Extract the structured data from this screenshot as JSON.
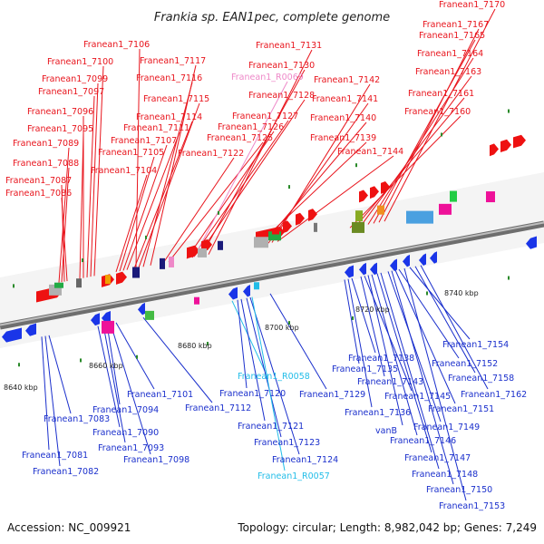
{
  "title": "Frankia sp. EAN1pec, complete genome",
  "footer": {
    "accession": "Accession: NC_009921",
    "summary": "Topology: circular; Length: 8,982,042 bp; Genes: 7,249"
  },
  "ticks": [
    "8640 kbp",
    "8660 kbp",
    "8680 kbp",
    "8700 kbp",
    "8720 kbp",
    "8740 kbp"
  ],
  "colors": {
    "forward_label": "#e8141c",
    "reverse_label": "#1a2fcc",
    "rna_forward_label": "#ee88c8",
    "rna_reverse_label": "#22bde8",
    "backbone": "#8a8a8a"
  },
  "top_labels": [
    {
      "text": "Franean1_7086",
      "kind": "forward"
    },
    {
      "text": "Franean1_7087",
      "kind": "forward"
    },
    {
      "text": "Franean1_7088",
      "kind": "forward"
    },
    {
      "text": "Franean1_7089",
      "kind": "forward"
    },
    {
      "text": "Franean1_7095",
      "kind": "forward"
    },
    {
      "text": "Franean1_7096",
      "kind": "forward"
    },
    {
      "text": "Franean1_7097",
      "kind": "forward"
    },
    {
      "text": "Franean1_7099",
      "kind": "forward"
    },
    {
      "text": "Franean1_7100",
      "kind": "forward"
    },
    {
      "text": "Franean1_7106",
      "kind": "forward"
    },
    {
      "text": "Franean1_7104",
      "kind": "forward"
    },
    {
      "text": "Franean1_7105",
      "kind": "forward"
    },
    {
      "text": "Franean1_7107",
      "kind": "forward"
    },
    {
      "text": "Franean1_7111",
      "kind": "forward"
    },
    {
      "text": "Franean1_7114",
      "kind": "forward"
    },
    {
      "text": "Franean1_7115",
      "kind": "forward"
    },
    {
      "text": "Franean1_7116",
      "kind": "forward"
    },
    {
      "text": "Franean1_7117",
      "kind": "forward"
    },
    {
      "text": "Franean1_7122",
      "kind": "forward"
    },
    {
      "text": "Franean1_7125",
      "kind": "forward"
    },
    {
      "text": "Franean1_7126",
      "kind": "forward"
    },
    {
      "text": "Franean1_7127",
      "kind": "forward"
    },
    {
      "text": "Franean1_7128",
      "kind": "forward"
    },
    {
      "text": "Franean1_R0069",
      "kind": "rna_forward"
    },
    {
      "text": "Franean1_7130",
      "kind": "forward"
    },
    {
      "text": "Franean1_7131",
      "kind": "forward"
    },
    {
      "text": "Franean1_7139",
      "kind": "forward"
    },
    {
      "text": "Franean1_7140",
      "kind": "forward"
    },
    {
      "text": "Franean1_7141",
      "kind": "forward"
    },
    {
      "text": "Franean1_7142",
      "kind": "forward"
    },
    {
      "text": "Franean1_7144",
      "kind": "forward"
    },
    {
      "text": "Franean1_7160",
      "kind": "forward"
    },
    {
      "text": "Franean1_7161",
      "kind": "forward"
    },
    {
      "text": "Franean1_7163",
      "kind": "forward"
    },
    {
      "text": "Franean1_7164",
      "kind": "forward"
    },
    {
      "text": "Franean1_7165",
      "kind": "forward"
    },
    {
      "text": "Franean1_7167",
      "kind": "forward"
    },
    {
      "text": "Franean1_7170",
      "kind": "forward"
    }
  ],
  "bottom_labels": [
    {
      "text": "Franean1_7081",
      "kind": "reverse"
    },
    {
      "text": "Franean1_7082",
      "kind": "reverse"
    },
    {
      "text": "Franean1_7083",
      "kind": "reverse"
    },
    {
      "text": "Franean1_7090",
      "kind": "reverse"
    },
    {
      "text": "Franean1_7093",
      "kind": "reverse"
    },
    {
      "text": "Franean1_7094",
      "kind": "reverse"
    },
    {
      "text": "Franean1_7098",
      "kind": "reverse"
    },
    {
      "text": "Franean1_7101",
      "kind": "reverse"
    },
    {
      "text": "Franean1_7112",
      "kind": "reverse"
    },
    {
      "text": "Franean1_R0058",
      "kind": "rna_reverse"
    },
    {
      "text": "Franean1_7120",
      "kind": "reverse"
    },
    {
      "text": "Franean1_7121",
      "kind": "reverse"
    },
    {
      "text": "Franean1_7123",
      "kind": "reverse"
    },
    {
      "text": "Franean1_7124",
      "kind": "reverse"
    },
    {
      "text": "Franean1_R0057",
      "kind": "rna_reverse"
    },
    {
      "text": "Franean1_7129",
      "kind": "reverse"
    },
    {
      "text": "Franean1_7135",
      "kind": "reverse"
    },
    {
      "text": "Franean1_7136",
      "kind": "reverse"
    },
    {
      "text": "Franean1_7138",
      "kind": "reverse"
    },
    {
      "text": "Franean1_7143",
      "kind": "reverse"
    },
    {
      "text": "Franean1_7145",
      "kind": "reverse"
    },
    {
      "text": "vanB",
      "kind": "reverse"
    },
    {
      "text": "Franean1_7146",
      "kind": "reverse"
    },
    {
      "text": "Franean1_7147",
      "kind": "reverse"
    },
    {
      "text": "Franean1_7148",
      "kind": "reverse"
    },
    {
      "text": "Franean1_7149",
      "kind": "reverse"
    },
    {
      "text": "Franean1_7150",
      "kind": "reverse"
    },
    {
      "text": "Franean1_7151",
      "kind": "reverse"
    },
    {
      "text": "Franean1_7152",
      "kind": "reverse"
    },
    {
      "text": "Franean1_7153",
      "kind": "reverse"
    },
    {
      "text": "Franean1_7154",
      "kind": "reverse"
    },
    {
      "text": "Franean1_7158",
      "kind": "reverse"
    },
    {
      "text": "Franean1_7162",
      "kind": "reverse"
    }
  ]
}
